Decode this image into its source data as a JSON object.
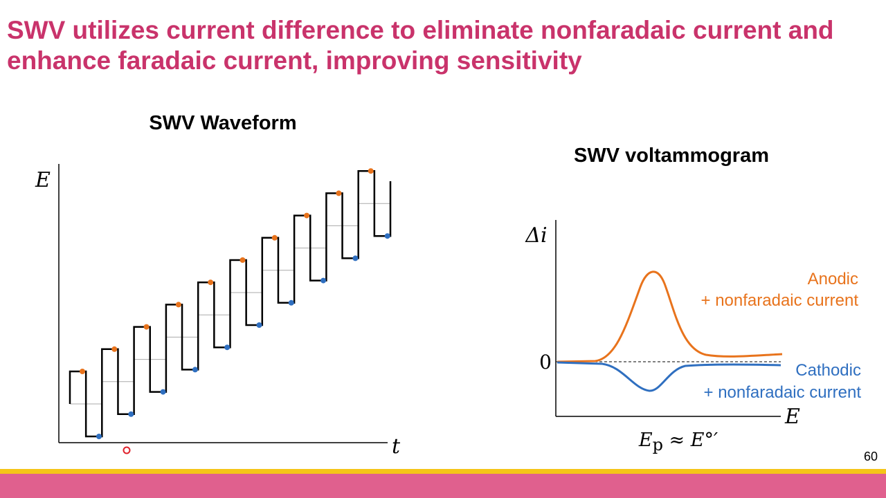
{
  "title": "SWV utilizes current difference to eliminate nonfaradaic current and enhance faradaic current, improving sensitivity",
  "waveform": {
    "title": "SWV Waveform",
    "y_label": "E",
    "x_label": "t"
  },
  "voltammogram": {
    "title": "SWV voltammogram",
    "y_label": "Δi",
    "zero_label": "0",
    "x_label": "E",
    "peak_label": {
      "symbol": "E",
      "subscript": "p",
      "rest": " ≈ E°′"
    },
    "anodic": {
      "label": "Anodic",
      "sublabel": "+ nonfaradaic current"
    },
    "cathodic": {
      "label": "Cathodic",
      "sublabel": "+ nonfaradaic current"
    }
  },
  "page_number": "60"
}
